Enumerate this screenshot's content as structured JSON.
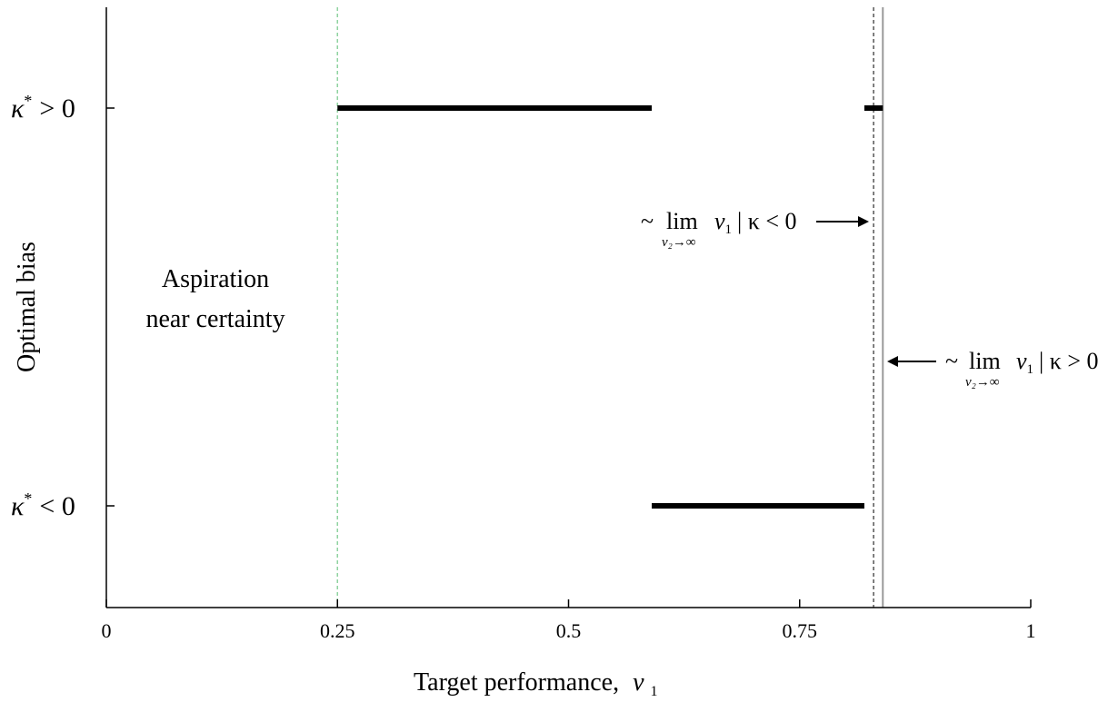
{
  "chart_data": {
    "type": "line",
    "xlabel": "Target performance,",
    "xlabel_var": "v",
    "xlabel_sub": "1",
    "ylabel": "Optimal bias",
    "xlim": [
      0,
      1
    ],
    "x_ticks": [
      0,
      0.25,
      0.5,
      0.75,
      1
    ],
    "x_tick_labels": [
      "0",
      "0.25",
      "0.5",
      "0.75",
      "1"
    ],
    "y_levels": [
      {
        "key": "pos",
        "symbol": "κ",
        "sup": "*",
        "rel": "> 0"
      },
      {
        "key": "neg",
        "symbol": "κ",
        "sup": "*",
        "rel": "< 0"
      }
    ],
    "segments": [
      {
        "level": "pos",
        "x": [
          0.25,
          0.59
        ]
      },
      {
        "level": "neg",
        "x": [
          0.59,
          0.82
        ]
      },
      {
        "level": "pos",
        "x": [
          0.82,
          0.84
        ]
      }
    ],
    "vlines": [
      {
        "x": 0.25,
        "style": "dashed",
        "color": "#8fd3a0"
      },
      {
        "x": 0.83,
        "style": "dashed",
        "color": "#555555"
      },
      {
        "x": 0.84,
        "style": "solid",
        "color": "#9a9a9a"
      }
    ],
    "annotations": {
      "region": [
        "Aspiration",
        "near certainty"
      ],
      "neg_limit": {
        "prefix": "~",
        "lim": "lim",
        "sub": "v₂→∞",
        "var": "v",
        "var_sub": "1",
        "cond": "| κ < 0"
      },
      "pos_limit": {
        "prefix": "~",
        "lim": "lim",
        "sub": "v₂→∞",
        "var": "v",
        "var_sub": "1",
        "cond": "| κ > 0"
      }
    }
  }
}
